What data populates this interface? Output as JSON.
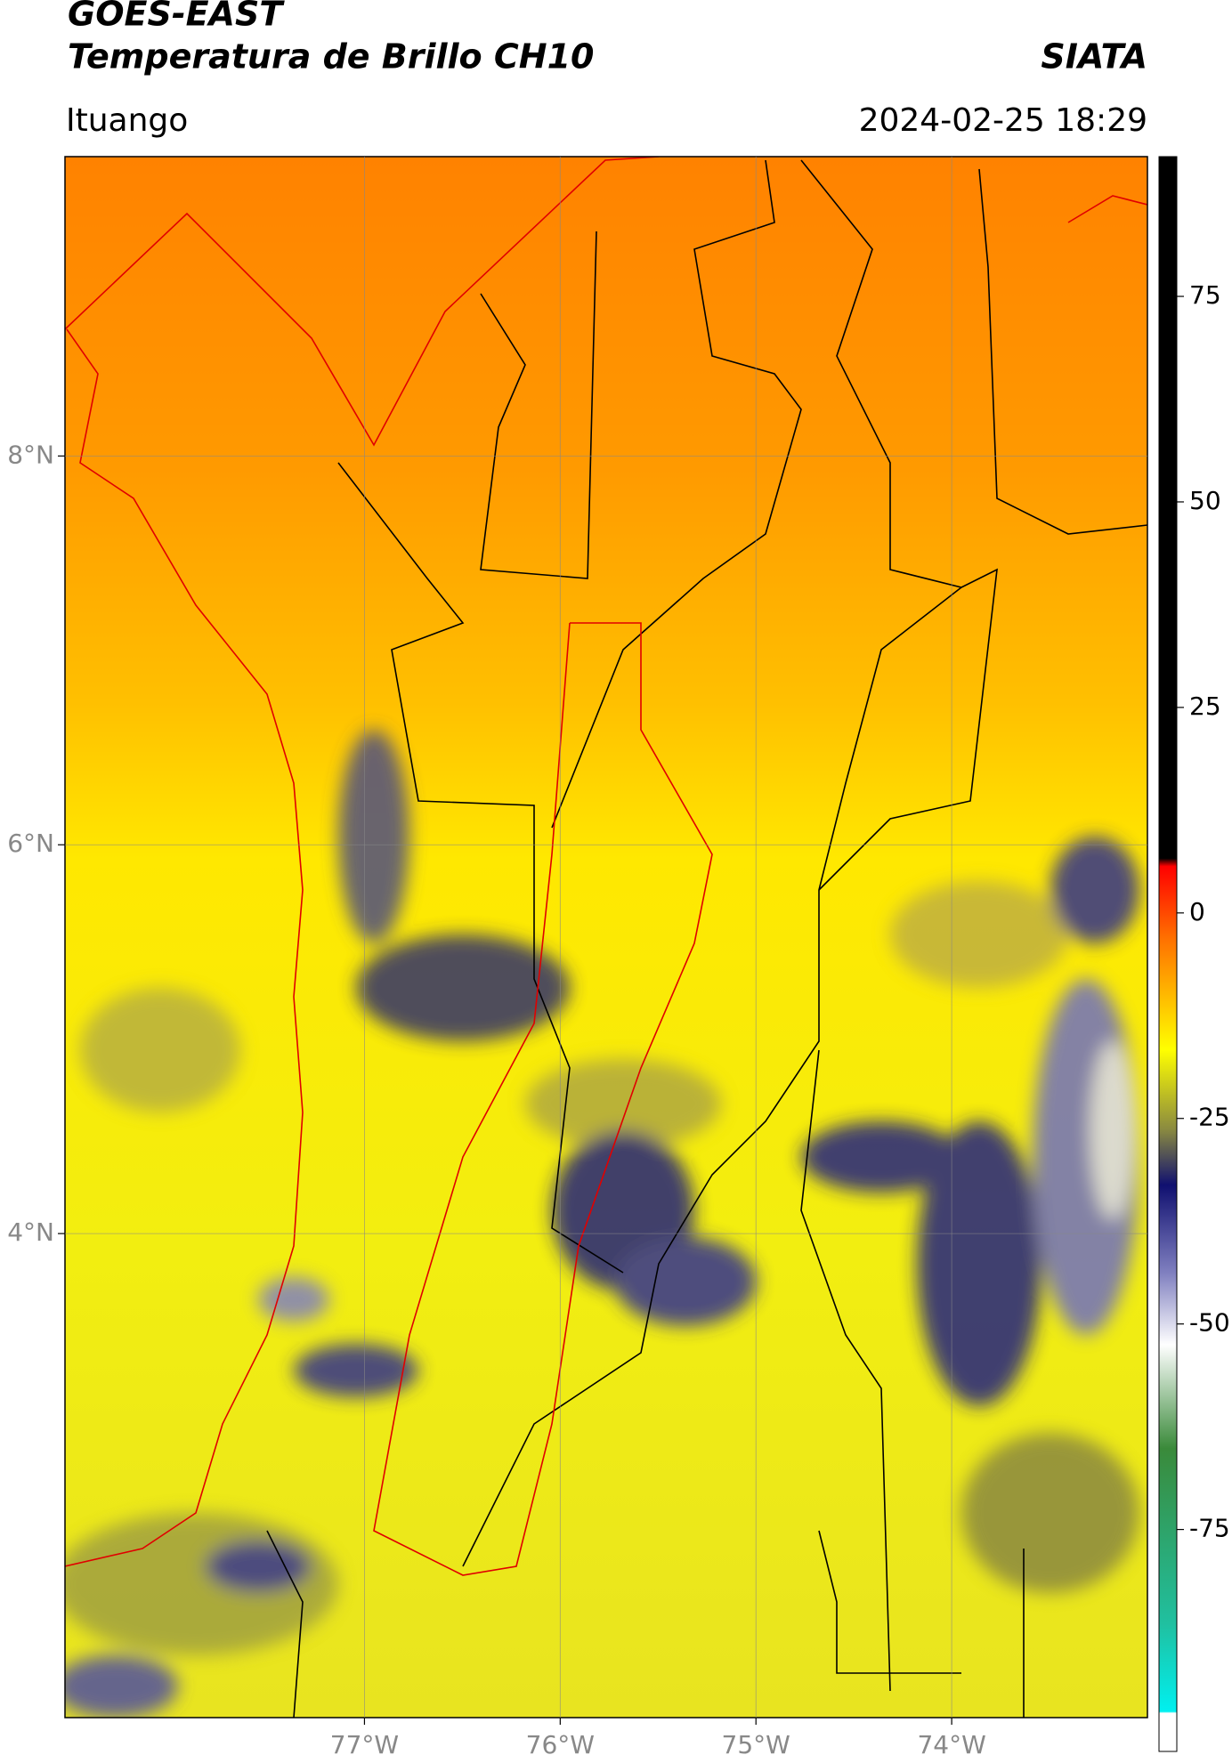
{
  "header": {
    "title": "GOES-EAST",
    "subtitle": "Temperatura de Brillo CH10",
    "source": "SIATA",
    "region": "Ituango",
    "timestamp": "2024-02-25 18:29"
  },
  "map": {
    "xlim": [
      -78.53,
      -73.0
    ],
    "ylim": [
      1.51,
      9.54
    ],
    "xticks": [
      {
        "value": -77,
        "label": "77°W"
      },
      {
        "value": -76,
        "label": "76°W"
      },
      {
        "value": -75,
        "label": "75°W"
      },
      {
        "value": -74,
        "label": "74°W"
      }
    ],
    "yticks": [
      {
        "value": 8,
        "label": "8°N"
      },
      {
        "value": 6,
        "label": "6°N"
      },
      {
        "value": 4,
        "label": "4°N"
      }
    ],
    "grid": true
  },
  "colorbar": {
    "lim": [
      -102,
      92
    ],
    "ticks": [
      -75,
      -50,
      -25,
      0,
      25,
      50,
      75
    ]
  }
}
